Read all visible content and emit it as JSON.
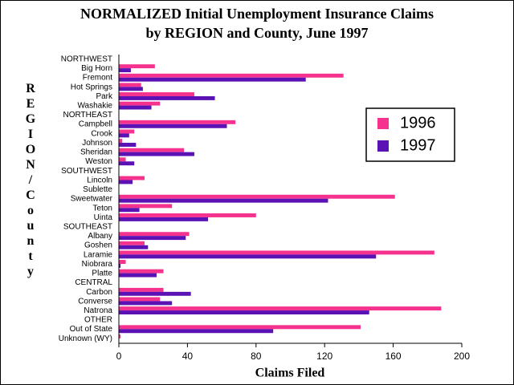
{
  "chart_data": {
    "type": "hbar",
    "title": "NORMALIZED Initial Unemployment Insurance Claims",
    "subtitle": "by REGION and County, June 1997",
    "x_label": "Claims Filed",
    "y_label": "REGION/County",
    "categories": [
      "NORTHWEST",
      "Big Horn",
      "Fremont",
      "Hot Springs",
      "Park",
      "Washakie",
      "NORTHEAST",
      "Campbell",
      "Crook",
      "Johnson",
      "Sheridan",
      "Weston",
      "SOUTHWEST",
      "Lincoln",
      "Sublette",
      "Sweetwater",
      "Teton",
      "Uinta",
      "SOUTHEAST",
      "Albany",
      "Goshen",
      "Laramie",
      "Niobrara",
      "Platte",
      "CENTRAL",
      "Carbon",
      "Converse",
      "Natrona",
      "OTHER",
      "Out of State",
      "Unknown (WY)"
    ],
    "series": [
      {
        "name": "1996",
        "color": "#f5338f",
        "values": [
          null,
          21,
          131,
          13,
          44,
          24,
          null,
          68,
          9,
          2,
          38,
          4,
          null,
          15,
          0,
          161,
          31,
          80,
          null,
          41,
          15,
          184,
          4,
          26,
          null,
          26,
          24,
          188,
          null,
          141,
          1
        ]
      },
      {
        "name": "1997",
        "color": "#5b12b4",
        "values": [
          null,
          7,
          109,
          14,
          56,
          19,
          null,
          63,
          6,
          10,
          44,
          9,
          null,
          8,
          0,
          122,
          12,
          52,
          null,
          39,
          17,
          150,
          1,
          22,
          null,
          42,
          31,
          146,
          null,
          90,
          0
        ]
      }
    ],
    "xlim": [
      0,
      200
    ],
    "xticks": [
      0,
      40,
      80,
      120,
      160,
      200
    ],
    "legend": "right"
  }
}
